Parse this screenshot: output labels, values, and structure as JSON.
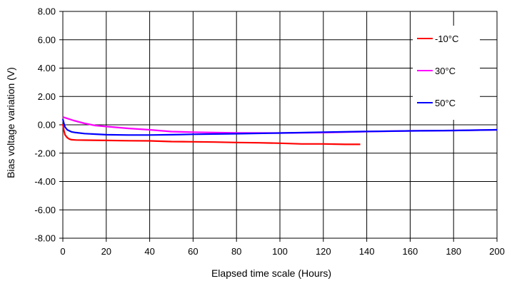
{
  "chart_data": {
    "type": "line",
    "title": "",
    "xlabel": "Elapsed time scale (Hours)",
    "ylabel": "Bias voltage variation (V)",
    "xlim": [
      0,
      200
    ],
    "ylim": [
      -8,
      8
    ],
    "x_ticks": [
      0,
      20,
      40,
      60,
      80,
      100,
      120,
      140,
      160,
      180,
      200
    ],
    "x_tick_labels": [
      "0",
      "20",
      "40",
      "60",
      "80",
      "100",
      "120",
      "140",
      "160",
      "180",
      "200"
    ],
    "y_ticks": [
      8,
      6,
      4,
      2,
      0,
      -2,
      -4,
      -6,
      -8
    ],
    "y_tick_labels": [
      "8.00",
      "6.00",
      "4.00",
      "2.00",
      "0.00",
      "-2.00",
      "-4.00",
      "-6.00",
      "-8.00"
    ],
    "grid": true,
    "legend_position": "top-right",
    "series": [
      {
        "name": "-10°C",
        "color": "#ff0000",
        "x": [
          0,
          0.5,
          1,
          2,
          3,
          4,
          6,
          10,
          20,
          30,
          40,
          50,
          60,
          70,
          80,
          90,
          100,
          110,
          120,
          130,
          137
        ],
        "y": [
          0.05,
          -0.4,
          -0.7,
          -0.9,
          -1.0,
          -1.05,
          -1.07,
          -1.08,
          -1.1,
          -1.12,
          -1.13,
          -1.18,
          -1.2,
          -1.22,
          -1.25,
          -1.27,
          -1.3,
          -1.35,
          -1.35,
          -1.38,
          -1.38
        ]
      },
      {
        "name": "30°C",
        "color": "#ff00ff",
        "x": [
          0,
          1,
          5,
          10,
          15,
          20,
          30,
          40,
          50,
          60,
          70,
          80,
          100,
          120,
          140,
          160,
          180,
          200
        ],
        "y": [
          0.55,
          0.5,
          0.3,
          0.1,
          -0.05,
          -0.12,
          -0.25,
          -0.35,
          -0.48,
          -0.52,
          -0.55,
          -0.57,
          -0.58,
          -0.55,
          -0.48,
          -0.43,
          -0.4,
          -0.35
        ]
      },
      {
        "name": "50°C",
        "color": "#0000ff",
        "x": [
          0,
          0.5,
          1,
          2,
          4,
          6,
          10,
          20,
          30,
          40,
          50,
          60,
          70,
          80,
          100,
          120,
          140,
          160,
          180,
          200
        ],
        "y": [
          0.4,
          0.1,
          -0.15,
          -0.35,
          -0.5,
          -0.55,
          -0.62,
          -0.7,
          -0.72,
          -0.72,
          -0.7,
          -0.67,
          -0.65,
          -0.63,
          -0.58,
          -0.52,
          -0.47,
          -0.43,
          -0.4,
          -0.35
        ]
      }
    ]
  }
}
